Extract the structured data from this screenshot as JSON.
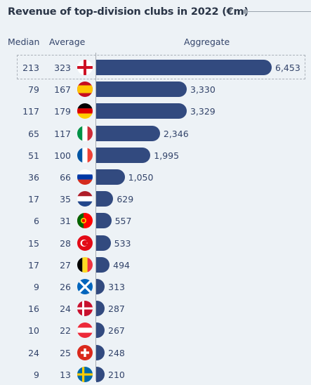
{
  "title": "Revenue of top-division clubs in 2022 (€m)",
  "headers": {
    "median": "Median",
    "average": "Average",
    "aggregate": "Aggregate"
  },
  "colors": {
    "bar": "#324a7f",
    "background": "#edf2f6"
  },
  "chart_data": {
    "type": "bar",
    "orientation": "horizontal",
    "title": "Revenue of top-division clubs in 2022 (€m)",
    "categories": [
      "england-flag",
      "spain-flag",
      "germany-flag",
      "italy-flag",
      "france-flag",
      "russia-flag",
      "netherlands-flag",
      "portugal-flag",
      "turkey-flag",
      "belgium-flag",
      "scotland-flag",
      "denmark-flag",
      "austria-flag",
      "switzerland-flag",
      "sweden-flag"
    ],
    "median": [
      "213",
      "79",
      "117",
      "65",
      "51",
      "36",
      "17",
      "6",
      "15",
      "17",
      "9",
      "16",
      "10",
      "24",
      "9"
    ],
    "average": [
      "323",
      "167",
      "179",
      "117",
      "100",
      "66",
      "35",
      "31",
      "28",
      "27",
      "26",
      "24",
      "22",
      "25",
      "13"
    ],
    "aggregate_labels": [
      "6,453",
      "3,330",
      "3,329",
      "2,346",
      "1,995",
      "1,050",
      "629",
      "557",
      "533",
      "494",
      "313",
      "287",
      "267",
      "248",
      "210"
    ],
    "values": [
      6453,
      3330,
      3329,
      2346,
      1995,
      1050,
      629,
      557,
      533,
      494,
      313,
      287,
      267,
      248,
      210
    ],
    "xlim": [
      0,
      6453
    ],
    "highlighted": "england-flag"
  }
}
